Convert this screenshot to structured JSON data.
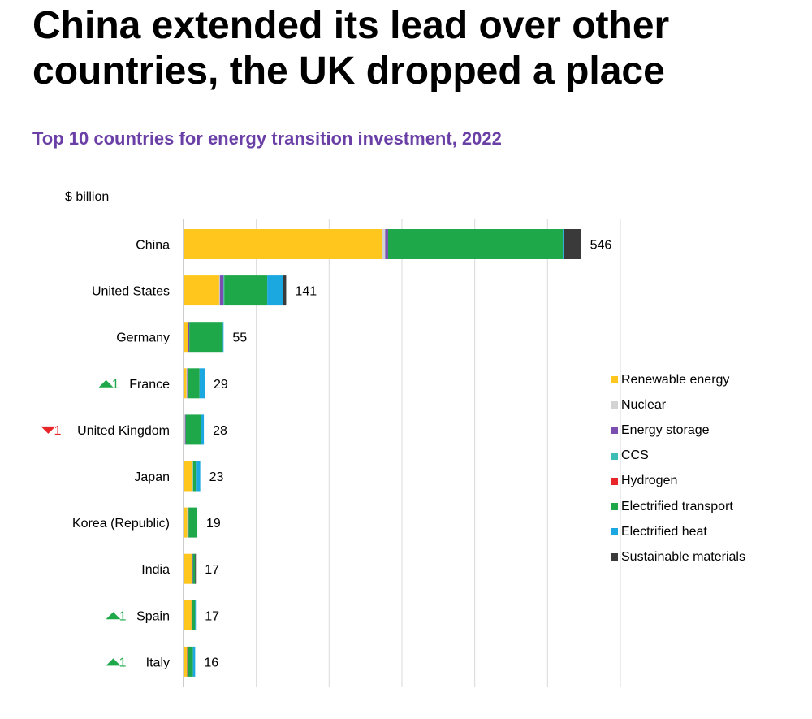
{
  "headline": "China extended its lead over other countries, the UK dropped a place",
  "chart_data": {
    "type": "bar",
    "orientation": "horizontal",
    "stacked": true,
    "title": "Top 10 countries for energy transition investment, 2022",
    "unit_label": "$ billion",
    "xlim": [
      0,
      600
    ],
    "grid": true,
    "legend_position": "right",
    "categories": [
      "China",
      "United States",
      "Germany",
      "France",
      "United Kingdom",
      "Japan",
      "Korea (Republic)",
      "India",
      "Spain",
      "Italy"
    ],
    "totals": [
      546,
      141,
      55,
      29,
      28,
      23,
      19,
      17,
      17,
      16
    ],
    "rank_changes": [
      {
        "direction": "",
        "value": ""
      },
      {
        "direction": "",
        "value": ""
      },
      {
        "direction": "",
        "value": ""
      },
      {
        "direction": "up",
        "value": "1"
      },
      {
        "direction": "down",
        "value": "1"
      },
      {
        "direction": "",
        "value": ""
      },
      {
        "direction": "",
        "value": ""
      },
      {
        "direction": "",
        "value": ""
      },
      {
        "direction": "up",
        "value": "1"
      },
      {
        "direction": "up",
        "value": "1"
      }
    ],
    "series": [
      {
        "name": "Renewable energy",
        "color": "#ffc61e",
        "values": [
          273,
          49,
          6,
          4,
          1,
          12,
          5,
          12,
          11,
          5
        ]
      },
      {
        "name": "Nuclear",
        "color": "#d3d3d3",
        "values": [
          4,
          1,
          0,
          1,
          1,
          1,
          1,
          0,
          0,
          0
        ]
      },
      {
        "name": "Energy storage",
        "color": "#7b4fb0",
        "values": [
          4,
          5,
          2,
          1,
          1,
          0,
          1,
          1,
          1,
          1
        ]
      },
      {
        "name": "CCS",
        "color": "#3dbdb5",
        "values": [
          0,
          1,
          0,
          0,
          0,
          0,
          0,
          0,
          0,
          0
        ]
      },
      {
        "name": "Hydrogen",
        "color": "#e8262a",
        "values": [
          0,
          0,
          0,
          0,
          0,
          0,
          0,
          0,
          0,
          0
        ]
      },
      {
        "name": "Electrified transport",
        "color": "#1ea84a",
        "values": [
          240,
          59,
          46,
          16,
          21,
          4,
          11,
          3,
          4,
          7
        ]
      },
      {
        "name": "Electrified heat",
        "color": "#1ba7e0",
        "values": [
          1,
          22,
          1,
          7,
          4,
          6,
          1,
          0,
          1,
          3
        ]
      },
      {
        "name": "Sustainable materials",
        "color": "#3a3a3a",
        "values": [
          24,
          4,
          0,
          0,
          0,
          0,
          0,
          1,
          0,
          0
        ]
      }
    ]
  }
}
